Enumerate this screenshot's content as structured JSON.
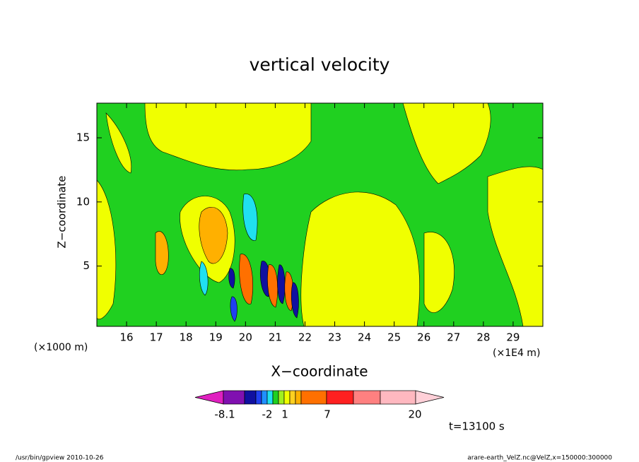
{
  "chart_data": {
    "type": "contour",
    "title": "vertical velocity",
    "x_label": "X−coordinate",
    "y_label": "Z−coordinate",
    "x_unit": "(×1E4 m)",
    "y_unit": "(×1000 m)",
    "xlim": [
      15,
      30
    ],
    "ylim": [
      0.3,
      17.7
    ],
    "xticks": [
      16,
      17,
      18,
      19,
      20,
      21,
      22,
      23,
      24,
      25,
      26,
      27,
      28,
      29
    ],
    "yticks": [
      5,
      10,
      15
    ],
    "colorbar": {
      "ticks": [
        -8.1,
        -2,
        1,
        7,
        20
      ],
      "colors": [
        "#e020c0",
        "#8010b0",
        "#1010a0",
        "#2040f0",
        "#2090ff",
        "#20e0f0",
        "#20d020",
        "#a0f020",
        "#f0ff00",
        "#ffd020",
        "#ffb000",
        "#ff7000",
        "#ff2020",
        "#ff8080",
        "#ffb8c0",
        "#ffd0d8"
      ]
    },
    "annotation": "t=13100 s",
    "footer_left": "/usr/bin/gpview   2010-10-26",
    "footer_right": "arare-earth_VelZ.nc@VelZ,x=150000:300000"
  }
}
